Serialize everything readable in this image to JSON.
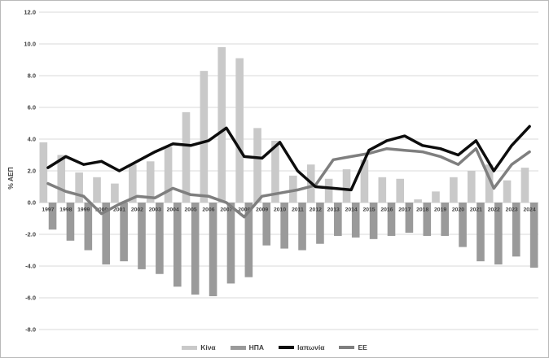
{
  "chart_data": {
    "type": "combo-bar-line",
    "title": "",
    "ylabel": "% ΑΕΠ",
    "xlabel": "",
    "ylim": [
      -8,
      12
    ],
    "ytick_step": 2,
    "grid": true,
    "legend_position": "bottom",
    "y_ticks": [
      {
        "value": 12,
        "label": "12.0"
      },
      {
        "value": 10,
        "label": "10.0"
      },
      {
        "value": 8,
        "label": "8.0"
      },
      {
        "value": 6,
        "label": "6.0"
      },
      {
        "value": 4,
        "label": "4.0"
      },
      {
        "value": 2,
        "label": "2.0"
      },
      {
        "value": 0,
        "label": "0.0"
      },
      {
        "value": -2,
        "label": "-2.0"
      },
      {
        "value": -4,
        "label": "-4.0"
      },
      {
        "value": -6,
        "label": "-6.0"
      },
      {
        "value": -8,
        "label": "-8.0"
      }
    ],
    "categories": [
      1997,
      1998,
      1999,
      2000,
      2001,
      2002,
      2003,
      2004,
      2005,
      2006,
      2007,
      2008,
      2009,
      2010,
      2011,
      2012,
      2013,
      2014,
      2015,
      2016,
      2017,
      2018,
      2019,
      2020,
      2021,
      2022,
      2023,
      2024
    ],
    "series": [
      {
        "name": "Κίνα",
        "type": "bar",
        "color": "#c9c9c9",
        "values": [
          3.8,
          3.0,
          1.9,
          1.6,
          1.2,
          2.4,
          2.6,
          3.5,
          5.7,
          8.3,
          9.8,
          9.1,
          4.7,
          3.9,
          1.7,
          2.4,
          1.5,
          2.1,
          2.7,
          1.6,
          1.5,
          0.2,
          0.7,
          1.6,
          2.0,
          2.4,
          1.4,
          2.2
        ]
      },
      {
        "name": "ΗΠΑ",
        "type": "bar",
        "color": "#9a9a9a",
        "values": [
          -1.7,
          -2.4,
          -3.0,
          -3.9,
          -3.7,
          -4.2,
          -4.5,
          -5.3,
          -5.8,
          -5.9,
          -5.1,
          -4.7,
          -2.7,
          -2.9,
          -3.0,
          -2.6,
          -2.1,
          -2.2,
          -2.3,
          -2.1,
          -1.9,
          -2.1,
          -2.1,
          -2.8,
          -3.7,
          -3.9,
          -3.4,
          -4.1
        ]
      },
      {
        "name": "Ιαπωνία",
        "type": "line",
        "color": "#0d0d0d",
        "values": [
          2.2,
          2.9,
          2.4,
          2.6,
          2.0,
          2.6,
          3.2,
          3.7,
          3.6,
          3.9,
          4.7,
          2.9,
          2.8,
          3.8,
          2.0,
          1.0,
          0.9,
          0.8,
          3.3,
          3.9,
          4.2,
          3.6,
          3.4,
          3.0,
          3.9,
          2.0,
          3.6,
          4.8
        ]
      },
      {
        "name": "ΕΕ",
        "type": "line",
        "color": "#7f7f7f",
        "values": [
          1.2,
          0.7,
          0.4,
          -0.7,
          -0.1,
          0.4,
          0.3,
          0.9,
          0.5,
          0.4,
          0.0,
          -0.9,
          0.4,
          0.6,
          0.8,
          1.1,
          2.7,
          2.9,
          3.1,
          3.4,
          3.3,
          3.2,
          2.9,
          2.4,
          3.4,
          0.9,
          2.4,
          3.2
        ]
      }
    ],
    "gridline_color": "#d9d9d9",
    "text_color": "#3f3f3f"
  },
  "legend": {
    "items": [
      {
        "label": "Κίνα"
      },
      {
        "label": "ΗΠΑ"
      },
      {
        "label": "Ιαπωνία"
      },
      {
        "label": "ΕΕ"
      }
    ]
  }
}
